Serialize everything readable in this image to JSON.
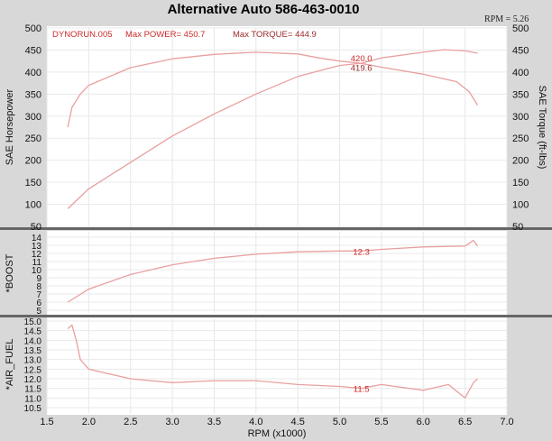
{
  "chart_data": [
    {
      "panel": "power-torque",
      "type": "line",
      "title": "Alternative Auto 586-463-0010",
      "run_label": "DYNORUN.005",
      "max_power_label": "Max POWER= 450.7",
      "max_torque_label": "Max TORQUE= 444.9",
      "rpm_readout": "RPM = 5.26",
      "xlabel": "RPM (x1000)",
      "ylabel": "SAE Horsepower",
      "ylabel_right": "SAE Torque (ft-lbs)",
      "xlim": [
        1.5,
        7.0
      ],
      "ylim": [
        50,
        500
      ],
      "x_ticks": [
        "1.5",
        "2.0",
        "2.5",
        "3.0",
        "3.5",
        "4.0",
        "4.5",
        "5.0",
        "5.5",
        "6.0",
        "6.5",
        "7.0"
      ],
      "y_ticks": [
        "50",
        "100",
        "150",
        "200",
        "250",
        "300",
        "350",
        "400",
        "450",
        "500"
      ],
      "y_ticks_right": [
        "50",
        "100",
        "150",
        "200",
        "250",
        "300",
        "350",
        "400",
        "450",
        "500"
      ],
      "grid": true,
      "series": [
        {
          "name": "",
          "role": "horsepower",
          "color": "#e8a0a0",
          "x": [
            1.75,
            2.0,
            2.5,
            3.0,
            3.5,
            4.0,
            4.5,
            5.0,
            5.26,
            5.5,
            6.0,
            6.25,
            6.5,
            6.65
          ],
          "y": [
            90,
            135,
            195,
            255,
            305,
            350,
            390,
            415,
            420,
            432,
            445,
            450.7,
            448,
            443
          ]
        },
        {
          "name": "",
          "role": "torque",
          "color": "#e8a0a0",
          "x": [
            1.75,
            1.8,
            1.9,
            2.0,
            2.5,
            3.0,
            3.5,
            4.0,
            4.5,
            4.75,
            5.0,
            5.26,
            5.5,
            6.0,
            6.4,
            6.55,
            6.65
          ],
          "y": [
            275,
            320,
            350,
            370,
            410,
            430,
            440,
            444.9,
            441,
            432,
            425,
            419.6,
            411,
            395,
            378,
            355,
            325
          ]
        }
      ],
      "annotations": [
        {
          "text": "420.0",
          "x": 5.26,
          "y": 420.0
        },
        {
          "text": "419.6",
          "x": 5.26,
          "y": 419.6
        }
      ]
    },
    {
      "panel": "boost",
      "type": "line",
      "ylabel": "*BOOST",
      "xlim": [
        1.5,
        7.0
      ],
      "ylim": [
        5,
        14.5
      ],
      "y_ticks": [
        "5",
        "6",
        "7",
        "8",
        "9",
        "10",
        "11",
        "12",
        "13",
        "14"
      ],
      "grid": true,
      "series": [
        {
          "name": "",
          "color": "#e8a0a0",
          "x": [
            1.75,
            2.0,
            2.5,
            3.0,
            3.5,
            4.0,
            4.5,
            5.0,
            5.26,
            5.5,
            6.0,
            6.5,
            6.6,
            6.65
          ],
          "y": [
            6.0,
            7.6,
            9.4,
            10.6,
            11.4,
            11.9,
            12.2,
            12.3,
            12.3,
            12.5,
            12.8,
            12.9,
            13.6,
            12.9
          ]
        }
      ],
      "annotations": [
        {
          "text": "12.3",
          "x": 5.26,
          "y": 12.3
        }
      ]
    },
    {
      "panel": "air-fuel",
      "type": "line",
      "ylabel": "*AIR_FUEL",
      "xlabel": "RPM (x1000)",
      "xlim": [
        1.5,
        7.0
      ],
      "ylim": [
        10.5,
        15.2
      ],
      "y_ticks": [
        "10.5",
        "11.0",
        "11.5",
        "12.0",
        "12.5",
        "13.0",
        "13.5",
        "14.0",
        "14.5",
        "15.0"
      ],
      "grid": true,
      "series": [
        {
          "name": "",
          "color": "#e8a0a0",
          "x": [
            1.75,
            1.8,
            1.85,
            1.9,
            2.0,
            2.2,
            2.5,
            3.0,
            3.5,
            4.0,
            4.5,
            5.0,
            5.26,
            5.5,
            6.0,
            6.3,
            6.5,
            6.6,
            6.65
          ],
          "y": [
            14.6,
            14.8,
            14.0,
            13.0,
            12.5,
            12.3,
            12.0,
            11.8,
            11.9,
            11.9,
            11.7,
            11.6,
            11.5,
            11.7,
            11.4,
            11.7,
            11.0,
            11.8,
            12.0
          ]
        }
      ],
      "annotations": [
        {
          "text": "11.5",
          "x": 5.26,
          "y": 11.5
        }
      ]
    }
  ]
}
